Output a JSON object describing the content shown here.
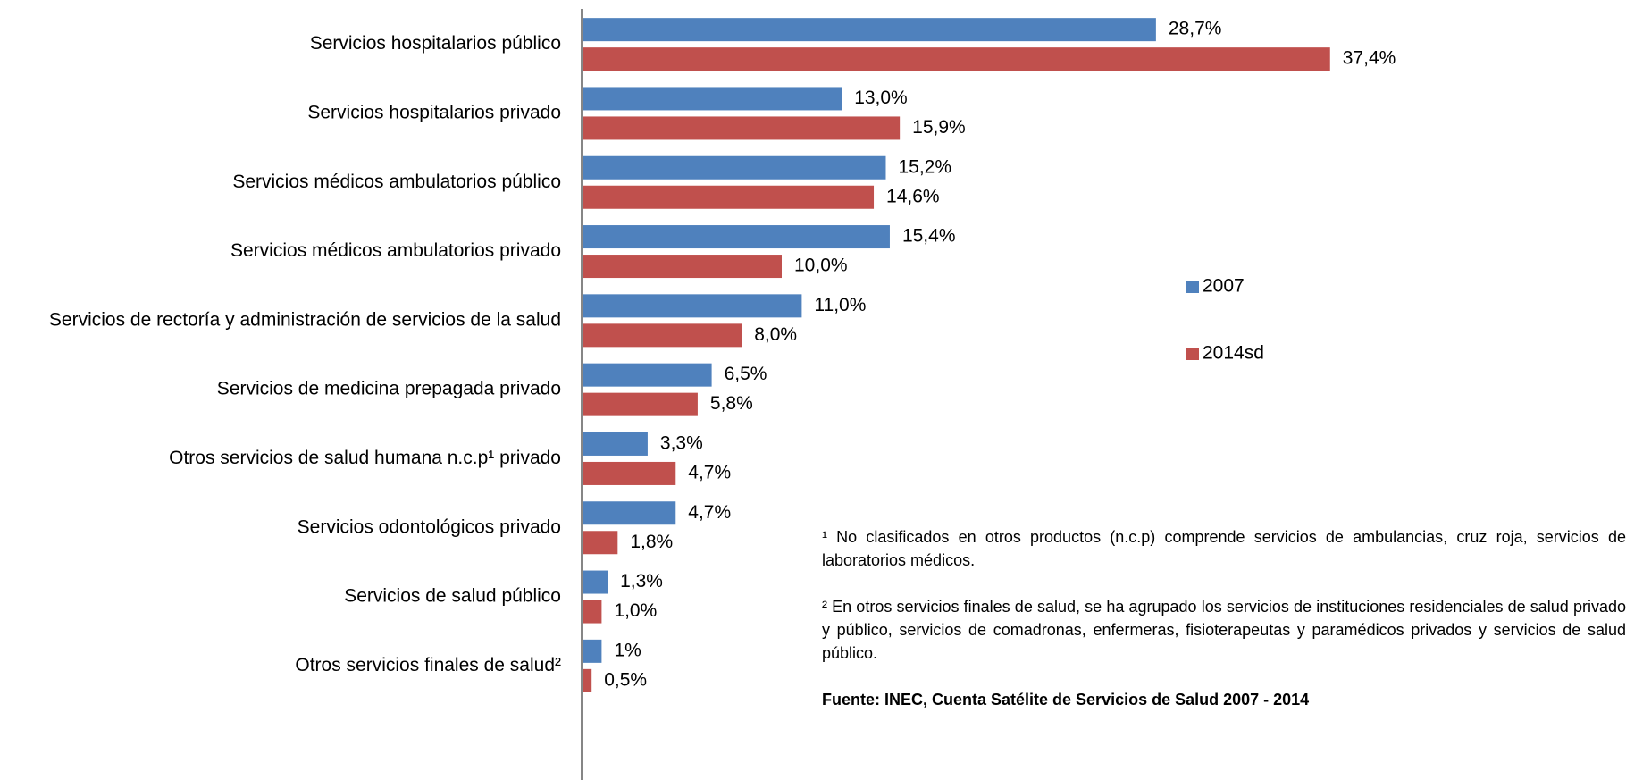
{
  "chart_data": {
    "type": "barh",
    "categories": [
      "Servicios hospitalarios público",
      "Servicios hospitalarios privado",
      "Servicios médicos ambulatorios público",
      "Servicios médicos ambulatorios privado",
      "Servicios de rectoría y administración de servicios de la salud",
      "Servicios de medicina prepagada privado",
      "Otros servicios de salud humana n.c.p¹ privado",
      "Servicios odontológicos privado",
      "Servicios de salud público",
      "Otros servicios finales de salud²"
    ],
    "series": [
      {
        "name": "2007",
        "color": "#4f81bd",
        "values": [
          28.7,
          13.0,
          15.2,
          15.4,
          11.0,
          6.5,
          3.3,
          4.7,
          1.3,
          1
        ],
        "value_labels": [
          "28,7%",
          "13,0%",
          "15,2%",
          "15,4%",
          "11,0%",
          "6,5%",
          "3,3%",
          "4,7%",
          "1,3%",
          "1%"
        ]
      },
      {
        "name": "2014sd",
        "color": "#c0504d",
        "values": [
          37.4,
          15.9,
          14.6,
          10.0,
          8.0,
          5.8,
          4.7,
          1.8,
          1.0,
          0.5
        ],
        "value_labels": [
          "37,4%",
          "15,9%",
          "14,6%",
          "10,0%",
          "8,0%",
          "5,8%",
          "4,7%",
          "1,8%",
          "1,0%",
          "0,5%"
        ]
      }
    ],
    "xlim": [
      0,
      40
    ],
    "legend": "right",
    "notes": [
      "¹ No clasificados en otros  productos (n.c.p) comprende servicios de ambulancias, cruz  roja, servicios de laboratorios médicos.",
      "² En otros servicios finales de salud, se ha agrupado los servicios de instituciones residenciales de salud privado y público, servicios de comadronas, enfermeras, fisioterapeutas  y paramédicos privados y servicios de salud público.",
      "Fuente: INEC, Cuenta Satélite de Servicios de Salud 2007 - 2014"
    ]
  }
}
